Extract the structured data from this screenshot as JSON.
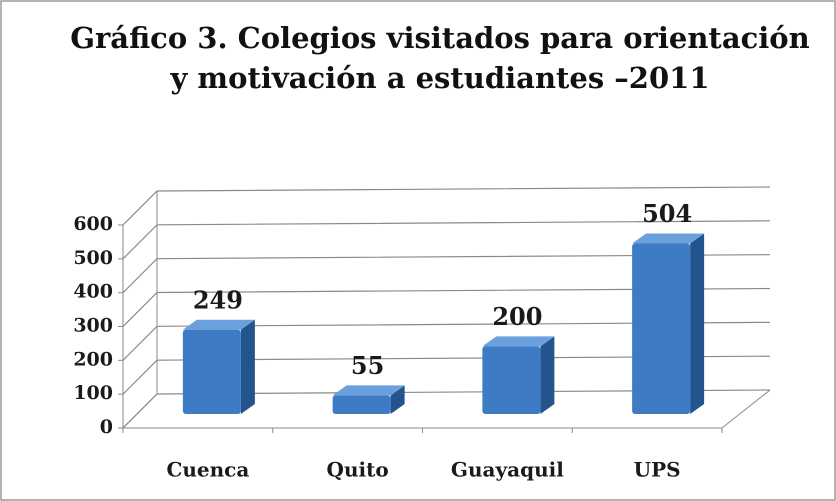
{
  "chart_data": {
    "type": "bar3d",
    "title": "Gráfico 3. Colegios visitados para orientación y motivación a estudiantes –2011",
    "categories": [
      "Cuenca",
      "Quito",
      "Guayaquil",
      "UPS"
    ],
    "values": [
      249,
      55,
      200,
      504
    ],
    "color": "#3d7cc4",
    "ylim": [
      0,
      600
    ],
    "yticks": [
      0,
      100,
      200,
      300,
      400,
      500,
      600
    ],
    "grid": true
  }
}
